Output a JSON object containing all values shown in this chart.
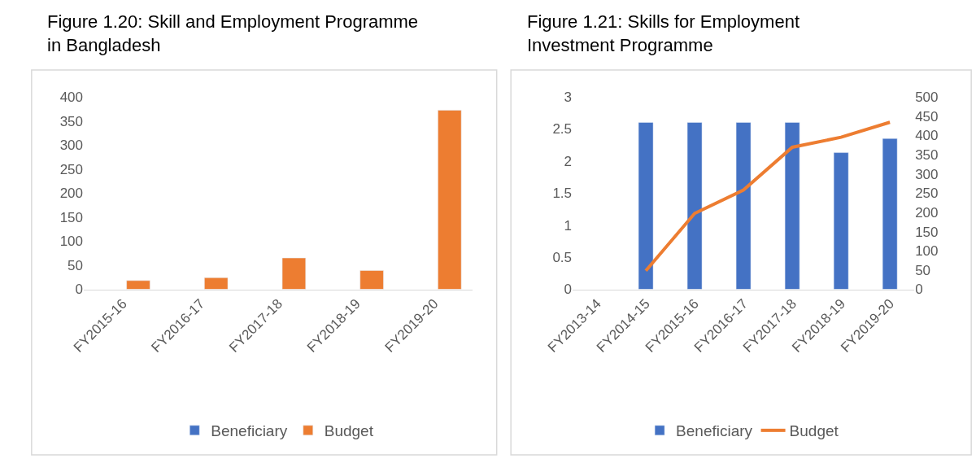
{
  "chart_data": [
    {
      "type": "bar",
      "title": "Figure 1.20: Skill and Employment Programme in Bangladesh",
      "categories": [
        "FY2015-16",
        "FY2016-17",
        "FY2017-18",
        "FY2018-19",
        "FY2019-20"
      ],
      "series": [
        {
          "name": "Beneficiary",
          "color": "#4472c4",
          "values": [
            null,
            null,
            null,
            null,
            null
          ]
        },
        {
          "name": "Budget",
          "color": "#ed7d31",
          "values": [
            18,
            24,
            65,
            39,
            372
          ]
        }
      ],
      "ylim": [
        0,
        400
      ],
      "yticks": [
        0,
        50,
        100,
        150,
        200,
        250,
        300,
        350,
        400
      ],
      "grid": false,
      "legend": "bottom"
    },
    {
      "type": "bar",
      "title": "Figure 1.21: Skills for Employment Investment Programme",
      "categories": [
        "FY2013-14",
        "FY2014-15",
        "FY2015-16",
        "FY2016-17",
        "FY2017-18",
        "FY2018-19",
        "FY2019-20"
      ],
      "series": [
        {
          "name": "Beneficiary",
          "color": "#4472c4",
          "values": [
            null,
            2.6,
            2.6,
            2.6,
            2.6,
            2.13,
            2.35
          ]
        },
        {
          "name": "Budget",
          "color": "#ed7d31",
          "type": "line",
          "axis": "y2",
          "values": [
            null,
            48,
            197,
            258,
            369,
            395,
            434
          ]
        }
      ],
      "ylim": [
        0,
        3
      ],
      "yticks": [
        0,
        0.5,
        1,
        1.5,
        2,
        2.5,
        3
      ],
      "y2lim": [
        0,
        500
      ],
      "y2ticks": [
        0,
        50,
        100,
        150,
        200,
        250,
        300,
        350,
        400,
        450,
        500
      ],
      "grid": false,
      "legend": "bottom",
      "marker": "none",
      "line_style": "solid"
    }
  ]
}
